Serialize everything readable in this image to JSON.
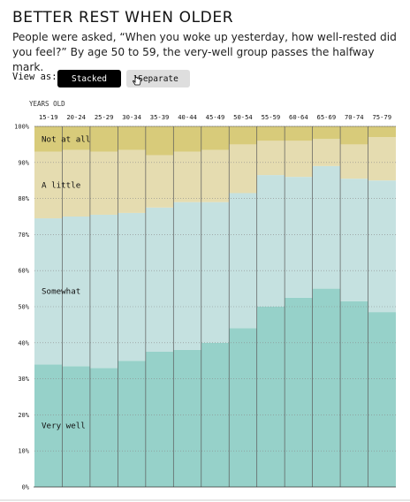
{
  "title": "BETTER REST WHEN OLDER",
  "subtitle": "People were asked, “When you woke up yesterday, how well-rested did you feel?” By age 50 to 59, the very-well group passes the halfway mark.",
  "controls": {
    "view_label": "View as:",
    "stacked_label": "Stacked",
    "separate_label": "Separate",
    "selected": "Stacked"
  },
  "chart_data": {
    "type": "bar",
    "stacked": true,
    "xlabel": "YEARS OLD",
    "categories": [
      "15-19",
      "20-24",
      "25-29",
      "30-34",
      "35-39",
      "40-44",
      "45-49",
      "50-54",
      "55-59",
      "60-64",
      "65-69",
      "70-74",
      "75-79"
    ],
    "yticks": [
      "0%",
      "10%",
      "20%",
      "30%",
      "40%",
      "50%",
      "60%",
      "70%",
      "80%",
      "90%",
      "100%"
    ],
    "ylim": [
      0,
      100
    ],
    "series": [
      {
        "name": "Very well",
        "color": "#96d1c9",
        "values": [
          34,
          33.5,
          33,
          35,
          37.5,
          38,
          40,
          44,
          50,
          52.5,
          55,
          51.5,
          48.5
        ]
      },
      {
        "name": "Somewhat",
        "color": "#c5e1e0",
        "values": [
          40.5,
          41.5,
          42.5,
          41,
          40,
          41,
          39,
          37.5,
          36.5,
          33.5,
          34,
          34,
          36.5
        ]
      },
      {
        "name": "A little",
        "color": "#e5dcb0",
        "values": [
          18.5,
          18.5,
          17.5,
          17.5,
          14.5,
          14,
          14.5,
          13.5,
          9.5,
          10,
          7.5,
          9.5,
          12
        ]
      },
      {
        "name": "Not at all",
        "color": "#d8cb7a",
        "values": [
          7,
          6.5,
          7,
          6.5,
          8,
          7,
          6.5,
          5,
          4,
          4,
          3.5,
          5,
          3
        ]
      }
    ]
  }
}
